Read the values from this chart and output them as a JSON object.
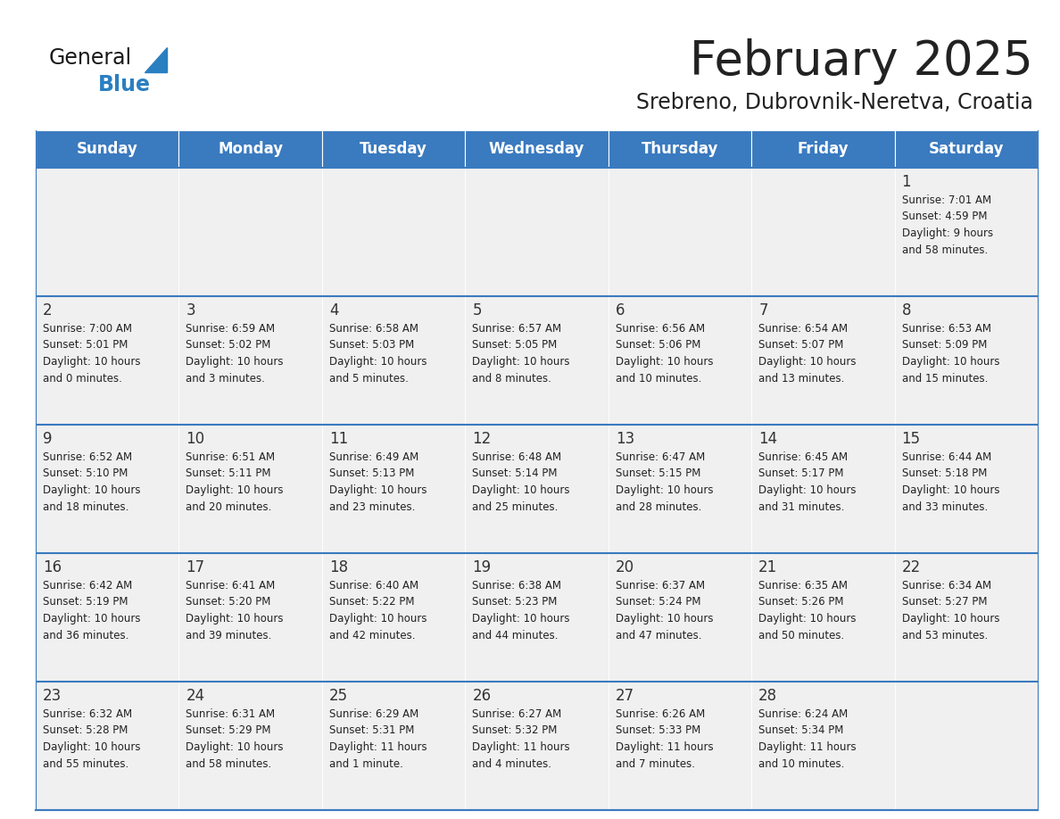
{
  "title": "February 2025",
  "subtitle": "Srebreno, Dubrovnik-Neretva, Croatia",
  "header_color": "#3a7abf",
  "header_text_color": "#ffffff",
  "days_of_week": [
    "Sunday",
    "Monday",
    "Tuesday",
    "Wednesday",
    "Thursday",
    "Friday",
    "Saturday"
  ],
  "background_color": "#ffffff",
  "cell_bg_color": "#f0f0f0",
  "row_line_color": "#3a7abf",
  "text_color": "#222222",
  "day_number_color": "#333333",
  "calendar": [
    [
      null,
      null,
      null,
      null,
      null,
      null,
      {
        "day": "1",
        "sunrise": "7:01 AM",
        "sunset": "4:59 PM",
        "daylight_h": "9 hours",
        "daylight_m": "and 58 minutes."
      }
    ],
    [
      {
        "day": "2",
        "sunrise": "7:00 AM",
        "sunset": "5:01 PM",
        "daylight_h": "10 hours",
        "daylight_m": "and 0 minutes."
      },
      {
        "day": "3",
        "sunrise": "6:59 AM",
        "sunset": "5:02 PM",
        "daylight_h": "10 hours",
        "daylight_m": "and 3 minutes."
      },
      {
        "day": "4",
        "sunrise": "6:58 AM",
        "sunset": "5:03 PM",
        "daylight_h": "10 hours",
        "daylight_m": "and 5 minutes."
      },
      {
        "day": "5",
        "sunrise": "6:57 AM",
        "sunset": "5:05 PM",
        "daylight_h": "10 hours",
        "daylight_m": "and 8 minutes."
      },
      {
        "day": "6",
        "sunrise": "6:56 AM",
        "sunset": "5:06 PM",
        "daylight_h": "10 hours",
        "daylight_m": "and 10 minutes."
      },
      {
        "day": "7",
        "sunrise": "6:54 AM",
        "sunset": "5:07 PM",
        "daylight_h": "10 hours",
        "daylight_m": "and 13 minutes."
      },
      {
        "day": "8",
        "sunrise": "6:53 AM",
        "sunset": "5:09 PM",
        "daylight_h": "10 hours",
        "daylight_m": "and 15 minutes."
      }
    ],
    [
      {
        "day": "9",
        "sunrise": "6:52 AM",
        "sunset": "5:10 PM",
        "daylight_h": "10 hours",
        "daylight_m": "and 18 minutes."
      },
      {
        "day": "10",
        "sunrise": "6:51 AM",
        "sunset": "5:11 PM",
        "daylight_h": "10 hours",
        "daylight_m": "and 20 minutes."
      },
      {
        "day": "11",
        "sunrise": "6:49 AM",
        "sunset": "5:13 PM",
        "daylight_h": "10 hours",
        "daylight_m": "and 23 minutes."
      },
      {
        "day": "12",
        "sunrise": "6:48 AM",
        "sunset": "5:14 PM",
        "daylight_h": "10 hours",
        "daylight_m": "and 25 minutes."
      },
      {
        "day": "13",
        "sunrise": "6:47 AM",
        "sunset": "5:15 PM",
        "daylight_h": "10 hours",
        "daylight_m": "and 28 minutes."
      },
      {
        "day": "14",
        "sunrise": "6:45 AM",
        "sunset": "5:17 PM",
        "daylight_h": "10 hours",
        "daylight_m": "and 31 minutes."
      },
      {
        "day": "15",
        "sunrise": "6:44 AM",
        "sunset": "5:18 PM",
        "daylight_h": "10 hours",
        "daylight_m": "and 33 minutes."
      }
    ],
    [
      {
        "day": "16",
        "sunrise": "6:42 AM",
        "sunset": "5:19 PM",
        "daylight_h": "10 hours",
        "daylight_m": "and 36 minutes."
      },
      {
        "day": "17",
        "sunrise": "6:41 AM",
        "sunset": "5:20 PM",
        "daylight_h": "10 hours",
        "daylight_m": "and 39 minutes."
      },
      {
        "day": "18",
        "sunrise": "6:40 AM",
        "sunset": "5:22 PM",
        "daylight_h": "10 hours",
        "daylight_m": "and 42 minutes."
      },
      {
        "day": "19",
        "sunrise": "6:38 AM",
        "sunset": "5:23 PM",
        "daylight_h": "10 hours",
        "daylight_m": "and 44 minutes."
      },
      {
        "day": "20",
        "sunrise": "6:37 AM",
        "sunset": "5:24 PM",
        "daylight_h": "10 hours",
        "daylight_m": "and 47 minutes."
      },
      {
        "day": "21",
        "sunrise": "6:35 AM",
        "sunset": "5:26 PM",
        "daylight_h": "10 hours",
        "daylight_m": "and 50 minutes."
      },
      {
        "day": "22",
        "sunrise": "6:34 AM",
        "sunset": "5:27 PM",
        "daylight_h": "10 hours",
        "daylight_m": "and 53 minutes."
      }
    ],
    [
      {
        "day": "23",
        "sunrise": "6:32 AM",
        "sunset": "5:28 PM",
        "daylight_h": "10 hours",
        "daylight_m": "and 55 minutes."
      },
      {
        "day": "24",
        "sunrise": "6:31 AM",
        "sunset": "5:29 PM",
        "daylight_h": "10 hours",
        "daylight_m": "and 58 minutes."
      },
      {
        "day": "25",
        "sunrise": "6:29 AM",
        "sunset": "5:31 PM",
        "daylight_h": "11 hours",
        "daylight_m": "and 1 minute."
      },
      {
        "day": "26",
        "sunrise": "6:27 AM",
        "sunset": "5:32 PM",
        "daylight_h": "11 hours",
        "daylight_m": "and 4 minutes."
      },
      {
        "day": "27",
        "sunrise": "6:26 AM",
        "sunset": "5:33 PM",
        "daylight_h": "11 hours",
        "daylight_m": "and 7 minutes."
      },
      {
        "day": "28",
        "sunrise": "6:24 AM",
        "sunset": "5:34 PM",
        "daylight_h": "11 hours",
        "daylight_m": "and 10 minutes."
      },
      null
    ]
  ],
  "logo_general_color": "#1a1a1a",
  "logo_blue_color": "#2a7fc1",
  "title_fontsize": 38,
  "subtitle_fontsize": 17,
  "header_fontsize": 12,
  "day_num_fontsize": 12,
  "cell_text_fontsize": 8.5
}
